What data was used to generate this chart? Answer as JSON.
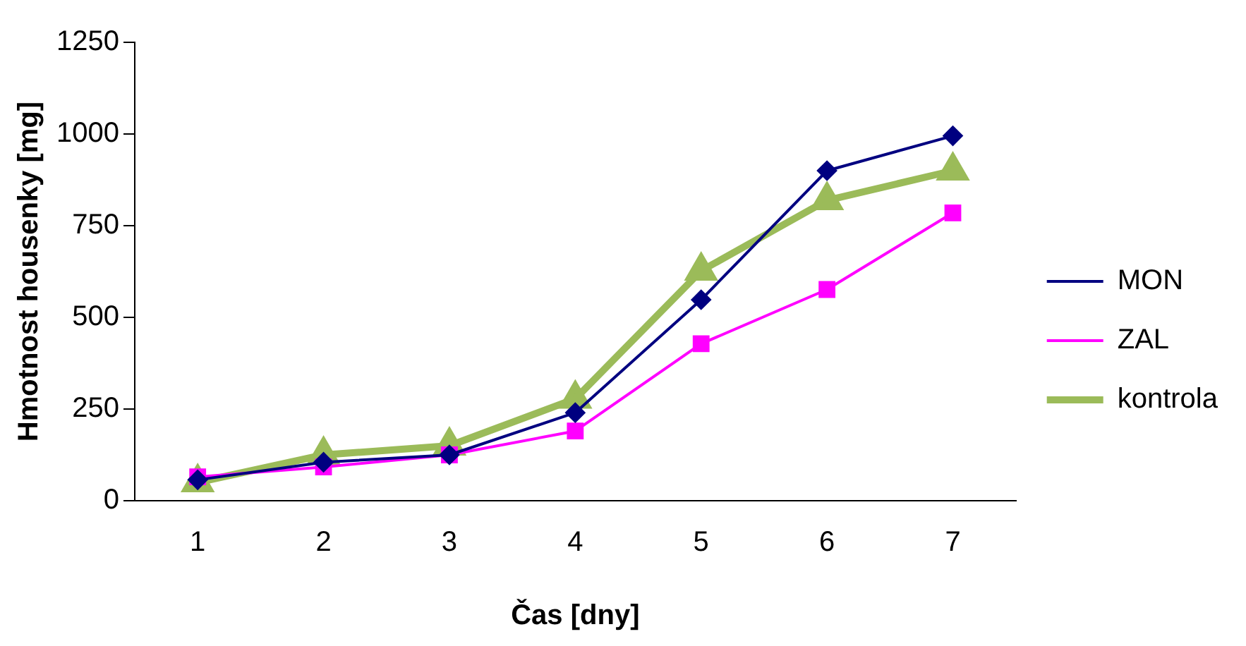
{
  "chart_data": {
    "type": "line",
    "xlabel": "Čas [dny]",
    "ylabel": "Hmotnost housenky [mg]",
    "categories": [
      "1",
      "2",
      "3",
      "4",
      "5",
      "6",
      "7"
    ],
    "ylim": [
      0,
      1250
    ],
    "yticks": [
      0,
      250,
      500,
      750,
      1000,
      1250
    ],
    "grid": false,
    "legend": "right",
    "series": [
      {
        "name": "MON",
        "color": "#000080",
        "marker": "diamond",
        "values": [
          57,
          105,
          125,
          240,
          548,
          900,
          995
        ]
      },
      {
        "name": "ZAL",
        "color": "#ff00ff",
        "marker": "square",
        "values": [
          65,
          92,
          125,
          190,
          428,
          576,
          785
        ]
      },
      {
        "name": "kontrola",
        "color": "#9bbb59",
        "marker": "triangle",
        "values": [
          50,
          125,
          150,
          278,
          627,
          819,
          900
        ]
      }
    ]
  }
}
